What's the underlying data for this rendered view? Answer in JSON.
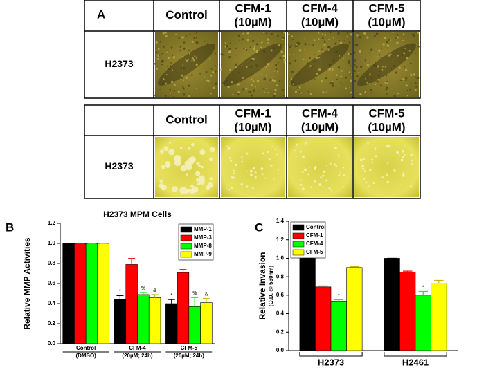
{
  "panel_a": {
    "label": "A",
    "tables": [
      {
        "columns": [
          [
            "Control"
          ],
          [
            "CFM-1",
            "(10µM)"
          ],
          [
            "CFM-4",
            "(10µM)"
          ],
          [
            "CFM-5",
            "(10µM)"
          ]
        ],
        "row_label": "H2373"
      },
      {
        "columns": [
          [
            "Control"
          ],
          [
            "CFM-1",
            "(10µM)"
          ],
          [
            "CFM-4",
            "(10µM)"
          ],
          [
            "CFM-5",
            "(10µM)"
          ]
        ],
        "row_label": "H2373"
      }
    ]
  },
  "chart_data": [
    {
      "type": "bar",
      "panel_label": "B",
      "title": "H2373 MPM Cells",
      "ylabel": "Relative MMP Activities",
      "categories": [
        "Control",
        "CFM-4",
        "CFM-5"
      ],
      "category_sublabels": [
        "(DMSO)",
        "(20µM; 24h)",
        "(20µM; 24h)"
      ],
      "series": [
        {
          "name": "MMP-1",
          "color": "#000000",
          "values": [
            1.0,
            0.44,
            0.4
          ],
          "errors": [
            0,
            0.04,
            0.04
          ],
          "annotations": [
            null,
            "*",
            "*"
          ]
        },
        {
          "name": "MMP-3",
          "color": "#ff0000",
          "values": [
            1.0,
            0.79,
            0.71
          ],
          "errors": [
            0,
            0.06,
            0.03
          ],
          "annotations": [
            null,
            null,
            null
          ]
        },
        {
          "name": "MMP-8",
          "color": "#00ff00",
          "values": [
            1.0,
            0.49,
            0.37
          ],
          "errors": [
            0,
            0.02,
            0.09
          ],
          "annotations": [
            null,
            "%",
            "%"
          ]
        },
        {
          "name": "MMP-9",
          "color": "#ffff00",
          "values": [
            1.0,
            0.46,
            0.41
          ],
          "errors": [
            0,
            0.03,
            0.04
          ],
          "annotations": [
            null,
            "&",
            "&"
          ]
        }
      ],
      "ylim": [
        0,
        1.2
      ],
      "yticks": [
        {
          "value": 0,
          "label": "0.0"
        },
        0.2,
        0.4,
        0.6,
        0.8,
        {
          "value": 1,
          "label": "1.0"
        },
        1.2
      ],
      "legend": "top-right"
    },
    {
      "type": "bar",
      "panel_label": "C",
      "ylabel": "Relative Invasion",
      "ylabel_sub": "(O.D. @ 560nm)",
      "categories": [
        "H2373",
        "H2461"
      ],
      "series": [
        {
          "name": "Control",
          "color": "#000000",
          "values": [
            1.0,
            1.0
          ],
          "errors": [
            0,
            0
          ],
          "annotations": [
            null,
            null
          ]
        },
        {
          "name": "CFM-1",
          "color": "#ff0000",
          "values": [
            0.69,
            0.85
          ],
          "errors": [
            0.01,
            0.01
          ],
          "annotations": [
            null,
            null
          ]
        },
        {
          "name": "CFM-4",
          "color": "#00ff00",
          "values": [
            0.53,
            0.6
          ],
          "errors": [
            0.02,
            0.04
          ],
          "annotations": [
            "*",
            "*"
          ]
        },
        {
          "name": "CFM-5",
          "color": "#ffff00",
          "values": [
            0.9,
            0.73
          ],
          "errors": [
            0.01,
            0.03
          ],
          "annotations": [
            null,
            null
          ]
        }
      ],
      "ylim": [
        0,
        1.4
      ],
      "yticks": [
        {
          "value": 0,
          "label": "0.0"
        },
        0.2,
        0.4,
        0.6,
        0.8,
        {
          "value": 1,
          "label": "1.0"
        },
        1.2,
        1.4
      ],
      "legend": "top-left"
    }
  ]
}
